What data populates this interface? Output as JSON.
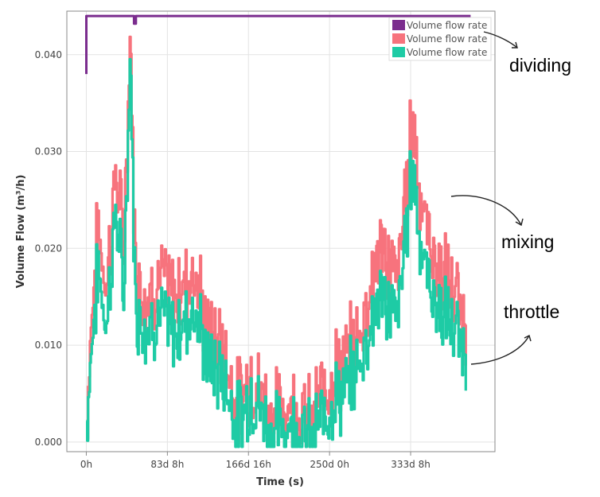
{
  "chart_data": {
    "type": "line",
    "title": "",
    "xlabel": "Time (s)",
    "ylabel": "Volume Flow (m³/h)",
    "ylim": [
      -0.001,
      0.0445
    ],
    "xlim": [
      -20,
      420
    ],
    "y_ticks": [
      0.0,
      0.01,
      0.02,
      0.03,
      0.04
    ],
    "y_tick_labels": [
      "0.000",
      "0.010",
      "0.020",
      "0.030",
      "0.040"
    ],
    "x_ticks": [
      0,
      83.333,
      166.667,
      250,
      333.333
    ],
    "x_tick_labels": [
      "0h",
      "83d 8h",
      "166d 16h",
      "250d 0h",
      "333d 8h"
    ],
    "x_unit": "days",
    "grid": true,
    "legend_position": "top-right",
    "series": [
      {
        "name": "Volume flow rate",
        "color": "#7b2d8e",
        "role": "dividing",
        "x": [
          0,
          0,
          1,
          49,
          49,
          51,
          51,
          395
        ],
        "y": [
          0.038,
          0.044,
          0.044,
          0.044,
          0.0432,
          0.0432,
          0.044,
          0.044
        ]
      },
      {
        "name": "Volume flow rate",
        "color": "#f7737d",
        "role": "mixing",
        "x": [
          0,
          5,
          12,
          20,
          30,
          38,
          45,
          50,
          60,
          75,
          90,
          110,
          125,
          140,
          155,
          170,
          190,
          210,
          230,
          250,
          265,
          280,
          300,
          320,
          335,
          345,
          360,
          375,
          390
        ],
        "y": [
          0.002,
          0.013,
          0.022,
          0.016,
          0.028,
          0.02,
          0.042,
          0.018,
          0.015,
          0.017,
          0.015,
          0.018,
          0.011,
          0.01,
          0.004,
          0.007,
          0.003,
          0.004,
          0.002,
          0.007,
          0.008,
          0.011,
          0.02,
          0.017,
          0.034,
          0.024,
          0.018,
          0.016,
          0.012
        ]
      },
      {
        "name": "Volume flow rate",
        "color": "#1ecba5",
        "role": "throttle",
        "x": [
          0,
          5,
          12,
          20,
          30,
          38,
          45,
          50,
          60,
          75,
          90,
          110,
          125,
          140,
          155,
          170,
          190,
          210,
          230,
          250,
          265,
          280,
          300,
          320,
          335,
          345,
          360,
          375,
          390
        ],
        "y": [
          0.002,
          0.01,
          0.018,
          0.012,
          0.024,
          0.015,
          0.04,
          0.014,
          0.012,
          0.013,
          0.011,
          0.014,
          0.008,
          0.007,
          0.002,
          0.005,
          0.001,
          0.002,
          0.0,
          0.004,
          0.005,
          0.008,
          0.015,
          0.013,
          0.029,
          0.019,
          0.014,
          0.012,
          0.009
        ]
      }
    ],
    "annotations": [
      "dividing",
      "mixing",
      "throttle"
    ]
  }
}
